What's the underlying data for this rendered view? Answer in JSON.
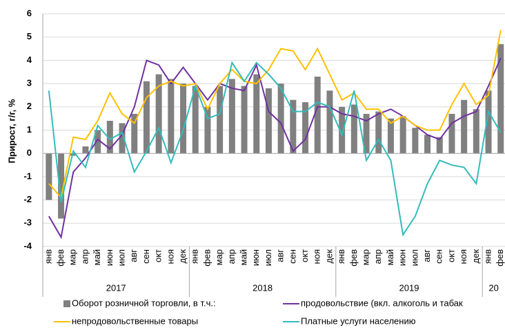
{
  "chart_data": {
    "type": "bar-line",
    "y_label": "Прирост, г/г, %",
    "categories": [
      "янв",
      "фев",
      "мар",
      "апр",
      "май",
      "июн",
      "июл",
      "авг",
      "сен",
      "окт",
      "ноя",
      "дек",
      "янв",
      "фев",
      "мар",
      "апр",
      "май",
      "июн",
      "июл",
      "авг",
      "сен",
      "окт",
      "ноя",
      "дек",
      "янв",
      "фев",
      "мар",
      "апр",
      "май",
      "июн",
      "июл",
      "авг",
      "сен",
      "окт",
      "ноя",
      "дек",
      "янв",
      "фев"
    ],
    "year_groups": [
      {
        "label": "2017",
        "months": 12
      },
      {
        "label": "2018",
        "months": 12
      },
      {
        "label": "2019",
        "months": 12
      },
      {
        "label": "20",
        "months": 2
      }
    ],
    "ylim": [
      -4,
      6
    ],
    "yticks": [
      -4,
      -3,
      -2,
      -1,
      0,
      1,
      2,
      3,
      4,
      5,
      6
    ],
    "grid": true,
    "series": [
      {
        "name": "Оборот розничной торговли, в т.ч.:",
        "kind": "bar",
        "color": "#808080",
        "values": [
          -2.0,
          -2.8,
          -0.1,
          0.3,
          1.0,
          1.4,
          1.3,
          1.7,
          3.1,
          3.4,
          3.2,
          3.0,
          2.9,
          2.0,
          2.9,
          3.2,
          2.9,
          3.4,
          2.8,
          3.0,
          2.3,
          2.2,
          3.3,
          2.7,
          2.0,
          2.1,
          1.7,
          1.8,
          1.5,
          1.6,
          1.1,
          0.8,
          0.7,
          1.7,
          2.3,
          1.9,
          2.7,
          4.7
        ]
      },
      {
        "name": "продовольствие (вкл. алкоголь и табак",
        "kind": "line",
        "color": "#7030a0",
        "values": [
          -2.7,
          -3.6,
          -0.8,
          -0.2,
          0.6,
          0.2,
          0.8,
          2.0,
          4.0,
          3.8,
          3.0,
          3.7,
          3.0,
          2.3,
          3.0,
          2.8,
          2.7,
          3.8,
          1.8,
          1.3,
          0.1,
          0.6,
          2.0,
          2.0,
          1.7,
          1.6,
          1.4,
          1.7,
          1.9,
          1.6,
          1.2,
          0.8,
          0.6,
          1.3,
          1.6,
          1.8,
          2.9,
          4.1
        ]
      },
      {
        "name": "непродовольственные товары",
        "kind": "line",
        "color": "#ffc000",
        "values": [
          -1.3,
          -1.9,
          0.7,
          0.6,
          1.4,
          2.6,
          1.7,
          1.3,
          2.4,
          2.9,
          3.1,
          2.9,
          3.0,
          1.9,
          3.0,
          3.6,
          3.1,
          3.0,
          3.6,
          4.5,
          4.4,
          3.6,
          4.5,
          3.4,
          2.3,
          2.6,
          1.9,
          1.9,
          1.3,
          1.6,
          1.2,
          1.0,
          1.0,
          2.1,
          3.0,
          2.1,
          2.5,
          5.3
        ]
      },
      {
        "name": "Платные услуги населению",
        "kind": "line",
        "color": "#33bbbb",
        "values": [
          2.7,
          -2.1,
          0.1,
          -0.6,
          1.2,
          0.6,
          0.9,
          -0.8,
          0.1,
          1.1,
          -0.4,
          1.0,
          2.9,
          1.5,
          1.7,
          3.9,
          3.1,
          3.9,
          3.4,
          2.8,
          1.8,
          1.8,
          2.2,
          2.0,
          0.8,
          2.7,
          -0.3,
          0.6,
          -0.3,
          -3.5,
          -2.7,
          -1.3,
          -0.3,
          -0.5,
          -0.6,
          -1.3,
          1.8,
          0.9
        ]
      }
    ]
  }
}
